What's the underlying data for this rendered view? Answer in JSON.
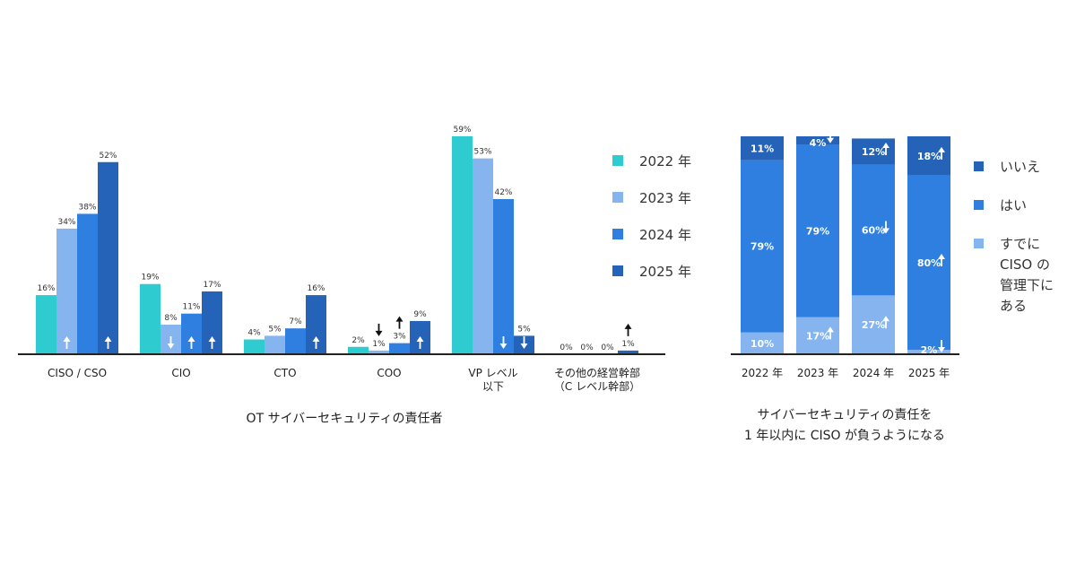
{
  "chart_data": [
    {
      "type": "bar",
      "caption": "OT サイバーセキュリティの責任者",
      "categories": [
        "CISO / CSO",
        "CIO",
        "CTO",
        "COO",
        "VP レベル\n以下",
        "その他の経営幹部\n（C レベル幹部）"
      ],
      "series": [
        {
          "name": "2022 年",
          "color": "#2ecbd1",
          "values": [
            16,
            19,
            4,
            2,
            59,
            0
          ],
          "labels": [
            "16%",
            "19%",
            "4%",
            "2%",
            "59%",
            "0%"
          ]
        },
        {
          "name": "2023 年",
          "color": "#86b4ef",
          "values": [
            34,
            8,
            5,
            1,
            53,
            0
          ],
          "labels": [
            "34%",
            "8%",
            "5%",
            "1%",
            "53%",
            "0%"
          ]
        },
        {
          "name": "2024 年",
          "color": "#2f7fe0",
          "values": [
            38,
            11,
            7,
            3,
            42,
            0
          ],
          "labels": [
            "38%",
            "11%",
            "7%",
            "3%",
            "42%",
            "0%"
          ]
        },
        {
          "name": "2025 年",
          "color": "#2563b8",
          "values": [
            52,
            17,
            16,
            9,
            5,
            1
          ],
          "labels": [
            "52%",
            "17%",
            "16%",
            "9%",
            "5%",
            "1%"
          ]
        }
      ],
      "ylim": [
        0,
        60
      ],
      "trend_arrows": [
        {
          "category": 0,
          "series": 1,
          "dir": "up",
          "placement": "inside"
        },
        {
          "category": 0,
          "series": 3,
          "dir": "up",
          "placement": "inside"
        },
        {
          "category": 1,
          "series": 1,
          "dir": "down",
          "placement": "inside"
        },
        {
          "category": 1,
          "series": 2,
          "dir": "up",
          "placement": "inside"
        },
        {
          "category": 1,
          "series": 3,
          "dir": "up",
          "placement": "inside"
        },
        {
          "category": 2,
          "series": 3,
          "dir": "up",
          "placement": "inside"
        },
        {
          "category": 3,
          "series": 1,
          "dir": "down",
          "placement": "above"
        },
        {
          "category": 3,
          "series": 2,
          "dir": "up",
          "placement": "above"
        },
        {
          "category": 3,
          "series": 3,
          "dir": "up",
          "placement": "inside"
        },
        {
          "category": 4,
          "series": 2,
          "dir": "down",
          "placement": "inside"
        },
        {
          "category": 4,
          "series": 3,
          "dir": "down",
          "placement": "inside"
        },
        {
          "category": 5,
          "series": 3,
          "dir": "up",
          "placement": "above"
        }
      ],
      "legend": {
        "position": "right",
        "items": [
          "2022 年",
          "2023 年",
          "2024 年",
          "2025 年"
        ]
      }
    },
    {
      "type": "bar",
      "stacked": true,
      "caption_lines": [
        "サイバーセキュリティの責任を",
        "1 年以内に CISO が負うようになる"
      ],
      "categories": [
        "2022 年",
        "2023 年",
        "2024 年",
        "2025 年"
      ],
      "series": [
        {
          "name": "すでに\nCISO の\n管理下に\nある",
          "color": "#86b4ef",
          "values": [
            10,
            17,
            27,
            2
          ],
          "labels": [
            "10%",
            "17%",
            "27%",
            "2%"
          ]
        },
        {
          "name": "はい",
          "color": "#2f7fe0",
          "values": [
            79,
            79,
            60,
            80
          ],
          "labels": [
            "79%",
            "79%",
            "60%",
            "80%"
          ]
        },
        {
          "name": "いいえ",
          "color": "#2563b8",
          "values": [
            11,
            4,
            12,
            18
          ],
          "labels": [
            "11%",
            "4%",
            "12%",
            "18%"
          ]
        }
      ],
      "trend_arrows": [
        {
          "category": 1,
          "series": 0,
          "dir": "up"
        },
        {
          "category": 2,
          "series": 0,
          "dir": "up"
        },
        {
          "category": 3,
          "series": 0,
          "dir": "down"
        },
        {
          "category": 2,
          "series": 1,
          "dir": "down"
        },
        {
          "category": 3,
          "series": 1,
          "dir": "up"
        },
        {
          "category": 1,
          "series": 2,
          "dir": "down"
        },
        {
          "category": 2,
          "series": 2,
          "dir": "up"
        },
        {
          "category": 3,
          "series": 2,
          "dir": "up"
        }
      ],
      "legend": {
        "position": "right",
        "items": [
          "いいえ",
          "はい",
          "すでに\nCISO の\n管理下に\nある"
        ]
      }
    }
  ]
}
